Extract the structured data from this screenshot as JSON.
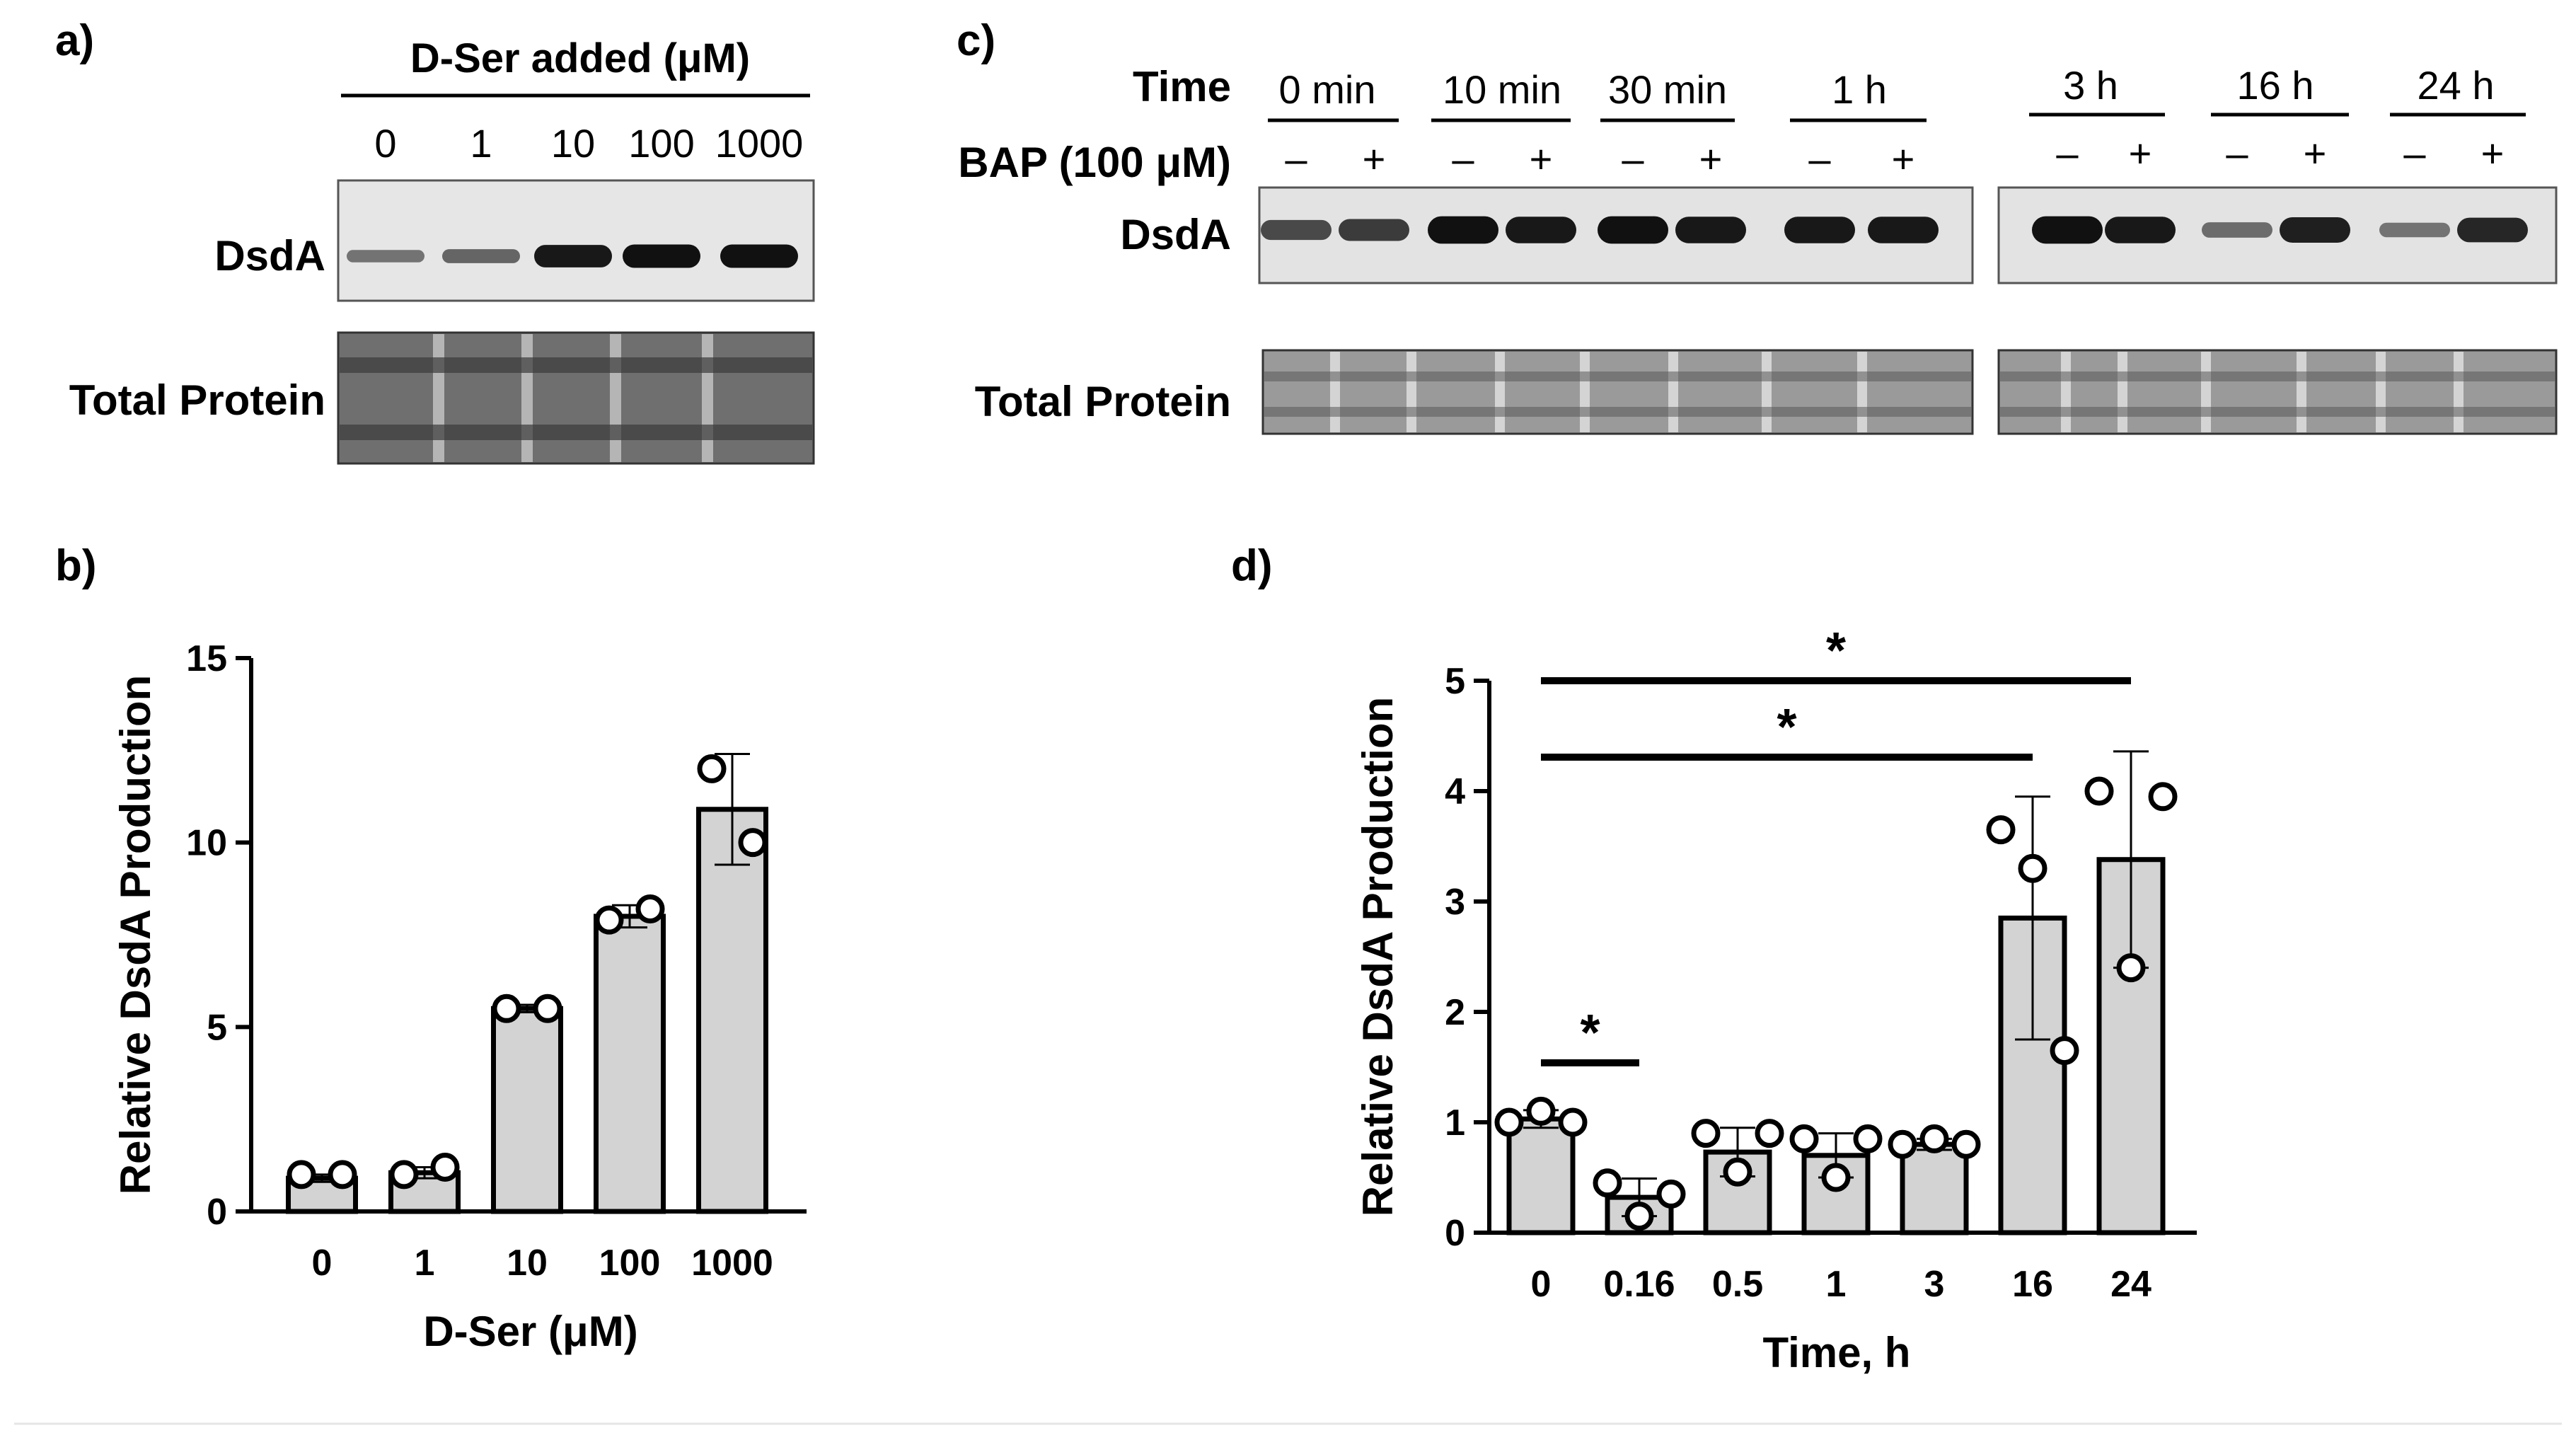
{
  "panels": {
    "a": {
      "label": "a)",
      "header": "D-Ser added (μM)",
      "lanes": [
        "0",
        "1",
        "10",
        "100",
        "1000"
      ],
      "rows": [
        "DsdA",
        "Total Protein"
      ],
      "dsda_band_intensity": [
        0.25,
        0.35,
        0.9,
        0.95,
        0.95
      ]
    },
    "b": {
      "label": "b)"
    },
    "c": {
      "label": "c)",
      "time_label": "Time",
      "bap_label": "BAP (100 μM)",
      "times": [
        "0 min",
        "10 min",
        "30 min",
        "1 h",
        "3 h",
        "16 h",
        "24 h"
      ],
      "minus": "–",
      "plus": "+",
      "rows": [
        "DsdA",
        "Total Protein"
      ],
      "dsda_band_intensity": [
        0.55,
        0.65,
        0.95,
        0.9,
        0.95,
        0.9,
        0.9,
        0.9,
        0.95,
        0.9,
        0.3,
        0.85,
        0.25,
        0.8
      ]
    },
    "d": {
      "label": "d)"
    }
  },
  "chart_data": [
    {
      "id": "b",
      "type": "bar",
      "categories": [
        "0",
        "1",
        "10",
        "100",
        "1000"
      ],
      "values": [
        0.9,
        1.05,
        5.5,
        8.0,
        10.9
      ],
      "error": [
        0.1,
        0.15,
        0.1,
        0.3,
        1.5
      ],
      "points": [
        [
          1.0,
          1.0
        ],
        [
          1.0,
          1.2
        ],
        [
          5.5,
          5.5
        ],
        [
          7.9,
          8.2
        ],
        [
          12.0,
          10.0
        ]
      ],
      "title": "",
      "xlabel": "D-Ser (μM)",
      "ylabel": "Relative DsdA Production",
      "ylim": [
        0,
        15
      ],
      "yticks": [
        "0",
        "5",
        "10",
        "15"
      ]
    },
    {
      "id": "d",
      "type": "bar",
      "categories": [
        "0",
        "0.16",
        "0.5",
        "1",
        "3",
        "16",
        "24"
      ],
      "values": [
        1.03,
        0.32,
        0.73,
        0.7,
        0.8,
        2.85,
        3.38
      ],
      "error": [
        0.08,
        0.17,
        0.22,
        0.2,
        0.05,
        1.1,
        0.98
      ],
      "points": [
        [
          1.0,
          1.1,
          1.0
        ],
        [
          0.45,
          0.15,
          0.35
        ],
        [
          0.9,
          0.55,
          0.9
        ],
        [
          0.85,
          0.5,
          0.85
        ],
        [
          0.8,
          0.85,
          0.8
        ],
        [
          3.65,
          3.3,
          1.65
        ],
        [
          4.0,
          2.4,
          3.95
        ]
      ],
      "title": "",
      "xlabel": "Time, h",
      "ylabel": "Relative DsdA Production",
      "ylim": [
        0,
        5
      ],
      "yticks": [
        "0",
        "1",
        "2",
        "3",
        "4",
        "5"
      ],
      "significance": [
        {
          "from": "0",
          "to": "0.16",
          "label": "*"
        },
        {
          "from": "0",
          "to": "16",
          "label": "*"
        },
        {
          "from": "0",
          "to": "24",
          "label": "*"
        }
      ]
    }
  ]
}
